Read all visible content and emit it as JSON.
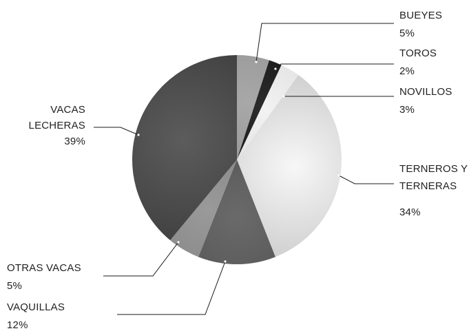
{
  "chart_data": {
    "type": "pie",
    "slices": [
      {
        "label_lines": [
          "BUEYES"
        ],
        "value_label": "5%",
        "value": 5,
        "color_a": "#a8a8a8",
        "color_b": "#8e8e8e"
      },
      {
        "label_lines": [
          "TOROS"
        ],
        "value_label": "2%",
        "value": 2,
        "color_a": "#2a2a2a",
        "color_b": "#111111"
      },
      {
        "label_lines": [
          "NOVILLOS"
        ],
        "value_label": "3%",
        "value": 3,
        "color_a": "#f2f2f2",
        "color_b": "#d4d4d4"
      },
      {
        "label_lines": [
          "TERNEROS Y",
          "TERNERAS"
        ],
        "value_label": "34%",
        "value": 34,
        "color_a": "#f7f7f7",
        "color_b": "#c6c6c6"
      },
      {
        "label_lines": [
          "VAQUILLAS"
        ],
        "value_label": "12%",
        "value": 12,
        "color_a": "#6a6a6a",
        "color_b": "#4e4e4e"
      },
      {
        "label_lines": [
          "OTRAS VACAS"
        ],
        "value_label": "5%",
        "value": 5,
        "color_a": "#9a9a9a",
        "color_b": "#7d7d7d"
      },
      {
        "label_lines": [
          "VACAS",
          "LECHERAS"
        ],
        "value_label": "39%",
        "value": 39,
        "color_a": "#5c5c5c",
        "color_b": "#3e3e3e"
      }
    ],
    "start_angle_deg": 0,
    "direction": "clockwise"
  }
}
